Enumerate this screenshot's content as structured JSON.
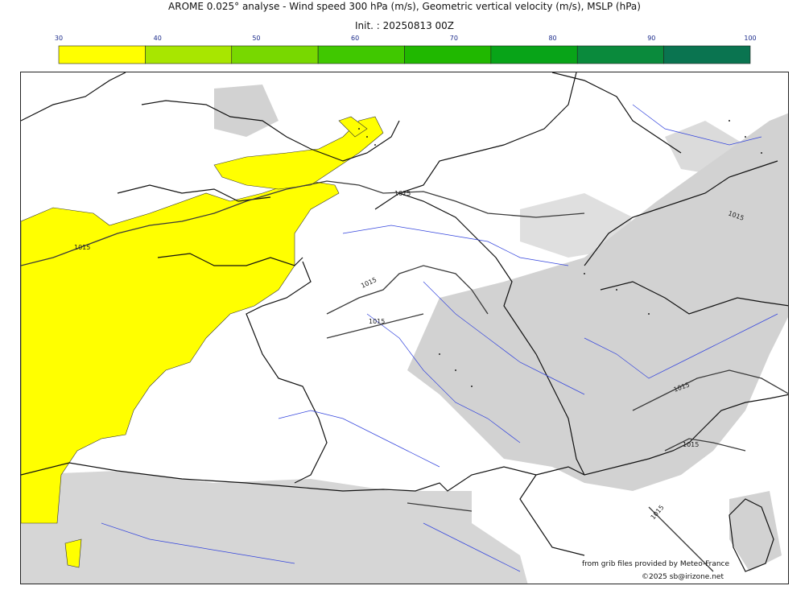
{
  "title": "AROME 0.025° analyse - Wind speed 300 hPa (m/s), Geometric vertical velocity (m/s), MSLP (hPa)",
  "subtitle": "Init. : 20250813 00Z",
  "colorbar": {
    "ticks": [
      "30",
      "40",
      "50",
      "60",
      "70",
      "80",
      "90",
      "100"
    ],
    "colors": [
      "#ffff00",
      "#a8e600",
      "#78d800",
      "#40c800",
      "#20b800",
      "#08a418",
      "#0a8a3c",
      "#0a7450"
    ]
  },
  "map": {
    "isobar_labels": [
      "1015",
      "1015",
      "1015",
      "1015",
      "1015",
      "1015",
      "1015",
      "1015"
    ],
    "colors": {
      "wind_30_40": "#ffff00",
      "ascent_shading": "#d2d2d2",
      "rivers": "#3344dd",
      "coast": "#111111",
      "isobar": "#3a3a3a"
    }
  },
  "credits": {
    "source": "from grib files provided by Meteo-France",
    "copyright": "©2025 sb@irizone.net"
  }
}
